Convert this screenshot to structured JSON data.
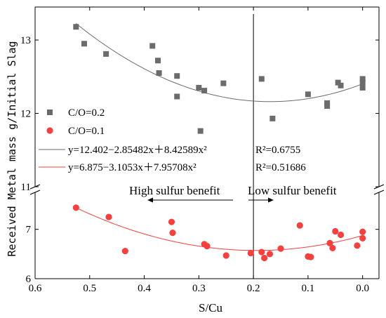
{
  "chart_data": {
    "type": "scatter",
    "xlabel": "S/Cu",
    "ylabel": "Received Metal mass g/Initial Slag",
    "x_reversed": true,
    "xlim": [
      0.6,
      -0.03
    ],
    "x_ticks": [
      "0.6",
      "0.5",
      "0.4",
      "0.3",
      "0.2",
      "0.1",
      "0.0"
    ],
    "y_axis_break": true,
    "ylim_upper": [
      11,
      13.45
    ],
    "ylim_lower": [
      6,
      7.75
    ],
    "y_ticks_upper": [
      "11",
      "12",
      "13"
    ],
    "y_ticks_lower": [
      "6",
      "7"
    ],
    "divider_x": 0.2,
    "annotations": {
      "left": "High sulfur benefit",
      "right": "Low sulfur benefit"
    },
    "colors": {
      "series1": "#6b6b6b",
      "series2": "#f2413f",
      "axis": "#000000"
    },
    "legend_position": "lower-left of upper panel",
    "series": [
      {
        "name": "C/O=0.2",
        "marker": "square",
        "points": [
          [
            0.525,
            13.18
          ],
          [
            0.51,
            12.95
          ],
          [
            0.47,
            12.81
          ],
          [
            0.385,
            12.92
          ],
          [
            0.375,
            12.72
          ],
          [
            0.373,
            12.55
          ],
          [
            0.34,
            12.51
          ],
          [
            0.34,
            12.23
          ],
          [
            0.3,
            12.35
          ],
          [
            0.297,
            11.76
          ],
          [
            0.29,
            12.31
          ],
          [
            0.255,
            12.41
          ],
          [
            0.185,
            12.47
          ],
          [
            0.165,
            11.93
          ],
          [
            0.1,
            12.26
          ],
          [
            0.065,
            12.14
          ],
          [
            0.065,
            12.1
          ],
          [
            0.045,
            12.42
          ],
          [
            0.04,
            12.38
          ],
          [
            0.0,
            12.47
          ],
          [
            0.0,
            12.42
          ],
          [
            0.0,
            12.35
          ]
        ],
        "fit": {
          "equation": "y=12.402−2.85482x＋8.42589x²",
          "r2": "R²=0.6755",
          "a": 12.402,
          "b": -2.85482,
          "c": 8.42589
        }
      },
      {
        "name": "C/O=0.1",
        "marker": "circle",
        "points": [
          [
            0.525,
            7.44
          ],
          [
            0.465,
            7.25
          ],
          [
            0.435,
            6.56
          ],
          [
            0.35,
            7.15
          ],
          [
            0.348,
            6.93
          ],
          [
            0.29,
            6.7
          ],
          [
            0.285,
            6.66
          ],
          [
            0.25,
            6.47
          ],
          [
            0.205,
            6.52
          ],
          [
            0.185,
            6.54
          ],
          [
            0.18,
            6.42
          ],
          [
            0.17,
            6.5
          ],
          [
            0.15,
            6.61
          ],
          [
            0.115,
            7.08
          ],
          [
            0.1,
            6.45
          ],
          [
            0.095,
            6.44
          ],
          [
            0.06,
            6.72
          ],
          [
            0.055,
            6.62
          ],
          [
            0.05,
            6.96
          ],
          [
            0.04,
            6.89
          ],
          [
            0.01,
            6.67
          ],
          [
            0.0,
            6.95
          ],
          [
            0.0,
            6.82
          ]
        ],
        "fit": {
          "equation": "y=6.875−3.1053x＋7.95708x²",
          "r2": "R²=0.51686",
          "a": 6.875,
          "b": -3.1053,
          "c": 7.95708
        }
      }
    ]
  }
}
